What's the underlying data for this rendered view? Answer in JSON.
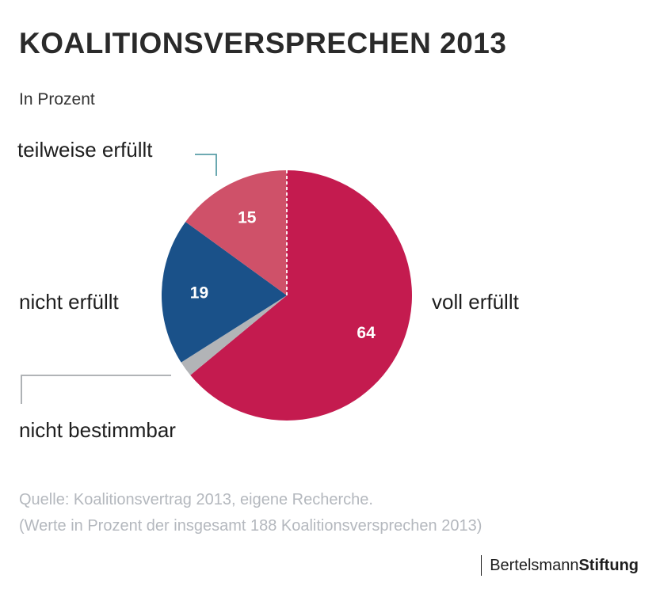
{
  "title": "KOALITIONSVERSPRECHEN 2013",
  "subtitle": "In Prozent",
  "chart_data": {
    "type": "pie",
    "title": "KOALITIONSVERSPRECHEN 2013",
    "unit": "In Prozent",
    "start": "12 o'clock, clockwise",
    "slices": [
      {
        "name": "voll erfüllt",
        "value": 64,
        "value_label": "64",
        "color": "#c41b4f"
      },
      {
        "name": "nicht bestimmbar",
        "value": 2,
        "value_label": "",
        "color": "#b2b4b7"
      },
      {
        "name": "nicht erfüllt",
        "value": 19,
        "value_label": "19",
        "color": "#1a5189"
      },
      {
        "name": "teilweise erfüllt",
        "value": 15,
        "value_label": "15",
        "color": "#cf5169"
      }
    ]
  },
  "labels": {
    "voll": "voll erfüllt",
    "teilweise": "teilweise erfüllt",
    "nicht_erfuellt": "nicht erfüllt",
    "nicht_bestimmbar": "nicht bestimmbar"
  },
  "source": {
    "line1": "Quelle: Koalitionsvertrag 2013, eigene Recherche.",
    "line2": "(Werte in Prozent der insgesamt 188 Koalitionsversprechen 2013)"
  },
  "logo": {
    "part1": "Bertelsmann",
    "part2": "Stiftung"
  },
  "colors": {
    "leader_teal": "#5a9ea8",
    "leader_grey": "#a6a9ad",
    "divider": "#ffffff"
  }
}
